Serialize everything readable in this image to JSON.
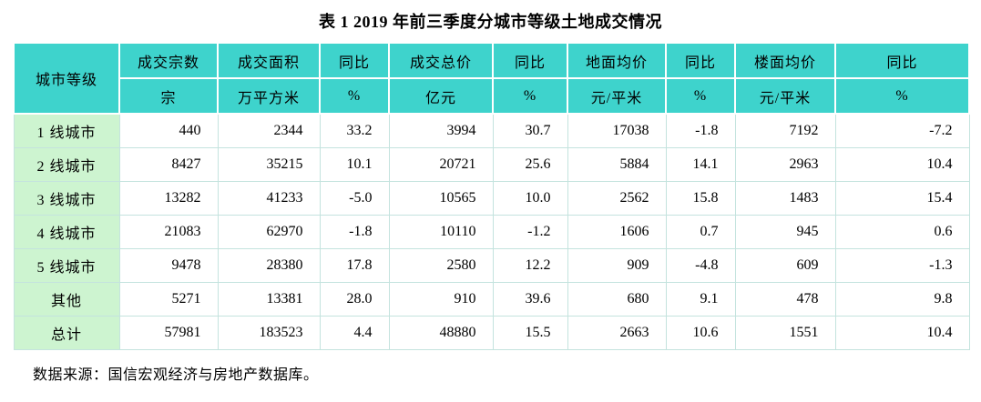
{
  "title": "表 1  2019 年前三季度分城市等级土地成交情况",
  "source_note": "数据来源：国信宏观经济与房地产数据库。",
  "colors": {
    "header_bg": "#3ed3cc",
    "tier_col_bg": "#cdf4d0",
    "grid_line": "#c4e3de",
    "text": "#000000"
  },
  "chart_data": {
    "type": "table",
    "title": "表 1  2019 年前三季度分城市等级土地成交情况",
    "row_header_label": "城市等级",
    "columns": [
      {
        "label": "成交宗数",
        "unit": "宗"
      },
      {
        "label": "成交面积",
        "unit": "万平方米"
      },
      {
        "label": "同比",
        "unit": "%"
      },
      {
        "label": "成交总价",
        "unit": "亿元"
      },
      {
        "label": "同比",
        "unit": "%"
      },
      {
        "label": "地面均价",
        "unit": "元/平米"
      },
      {
        "label": "同比",
        "unit": "%"
      },
      {
        "label": "楼面均价",
        "unit": "元/平米"
      },
      {
        "label": "同比",
        "unit": "%"
      }
    ],
    "rows": [
      {
        "tier": "1 线城市",
        "values": [
          "440",
          "2344",
          "33.2",
          "3994",
          "30.7",
          "17038",
          "-1.8",
          "7192",
          "-7.2"
        ]
      },
      {
        "tier": "2 线城市",
        "values": [
          "8427",
          "35215",
          "10.1",
          "20721",
          "25.6",
          "5884",
          "14.1",
          "2963",
          "10.4"
        ]
      },
      {
        "tier": "3 线城市",
        "values": [
          "13282",
          "41233",
          "-5.0",
          "10565",
          "10.0",
          "2562",
          "15.8",
          "1483",
          "15.4"
        ]
      },
      {
        "tier": "4 线城市",
        "values": [
          "21083",
          "62970",
          "-1.8",
          "10110",
          "-1.2",
          "1606",
          "0.7",
          "945",
          "0.6"
        ]
      },
      {
        "tier": "5 线城市",
        "values": [
          "9478",
          "28380",
          "17.8",
          "2580",
          "12.2",
          "909",
          "-4.8",
          "609",
          "-1.3"
        ]
      },
      {
        "tier": "其他",
        "values": [
          "5271",
          "13381",
          "28.0",
          "910",
          "39.6",
          "680",
          "9.1",
          "478",
          "9.8"
        ]
      },
      {
        "tier": "总计",
        "values": [
          "57981",
          "183523",
          "4.4",
          "48880",
          "15.5",
          "2663",
          "10.6",
          "1551",
          "10.4"
        ]
      }
    ]
  }
}
